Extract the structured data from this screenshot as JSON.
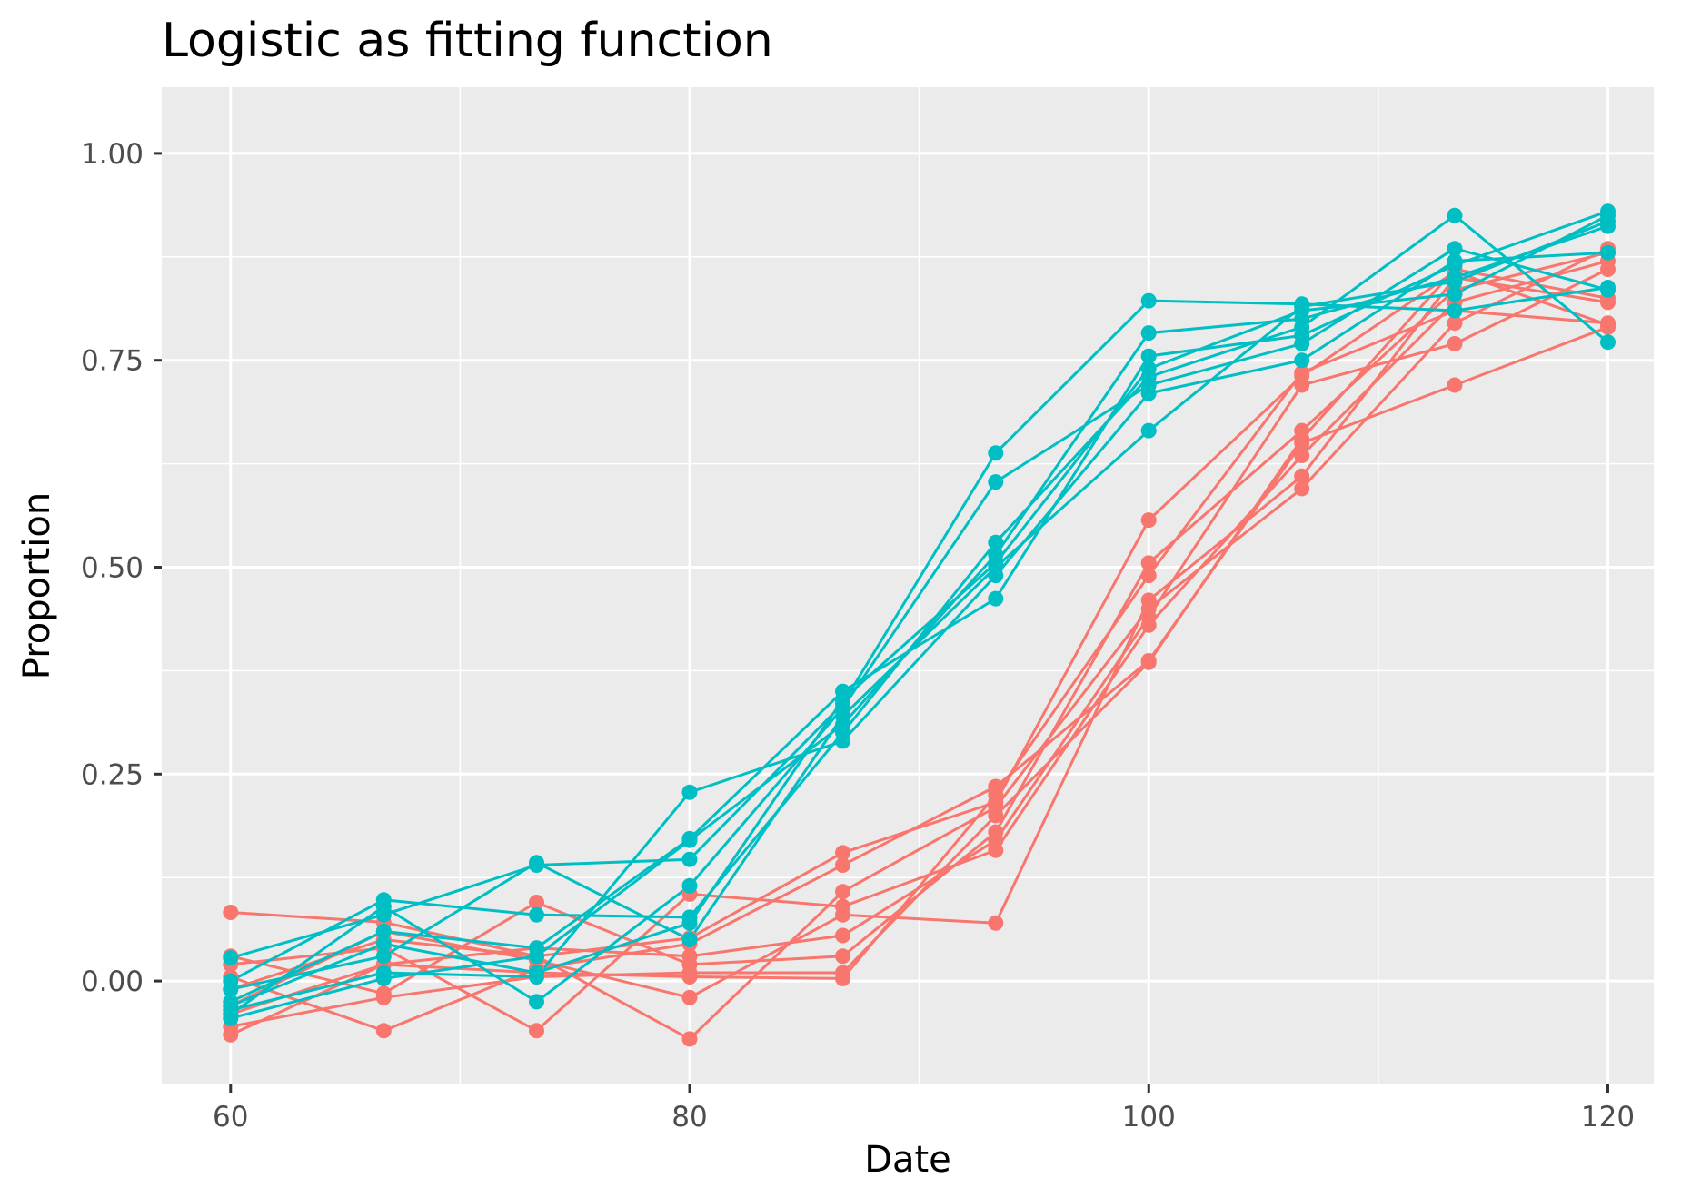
{
  "chart_data": {
    "type": "line",
    "title": "Logistic as fitting  function",
    "xlabel": "Date",
    "ylabel": "Proportion",
    "xlim": [
      57,
      122
    ],
    "ylim": [
      -0.125,
      1.08
    ],
    "xticks": [
      60,
      80,
      100,
      120
    ],
    "xtick_labels": [
      "60",
      "80",
      "100",
      "120"
    ],
    "yticks": [
      0,
      0.25,
      0.5,
      0.75,
      1
    ],
    "ytick_labels": [
      "0.00",
      "0.25",
      "0.50",
      "0.75",
      "1.00"
    ],
    "grid": true,
    "legend": "none",
    "colors": {
      "red": "#F8766D",
      "teal": "#00BFC4",
      "panel": "#EBEBEB",
      "grid": "#FFFFFF"
    },
    "x": [
      60,
      66.67,
      73.33,
      80,
      86.67,
      93.33,
      100,
      106.67,
      113.33,
      120
    ],
    "series": [
      {
        "color": "red",
        "values": [
          0.083,
          0.071,
          0.03,
          0.052,
          0.155,
          0.216,
          0.557,
          0.731,
          0.857,
          0.793
        ]
      },
      {
        "color": "red",
        "values": [
          0.03,
          -0.015,
          0.095,
          0.02,
          0.03,
          0.18,
          0.505,
          0.665,
          0.835,
          0.88
        ]
      },
      {
        "color": "red",
        "values": [
          0.02,
          0.04,
          -0.06,
          0.105,
          0.09,
          0.158,
          0.43,
          0.635,
          0.82,
          0.87
        ]
      },
      {
        "color": "red",
        "values": [
          0.005,
          -0.06,
          0.015,
          0.045,
          0.14,
          0.235,
          0.387,
          0.65,
          0.72,
          0.79
        ]
      },
      {
        "color": "red",
        "values": [
          -0.01,
          0.05,
          0.03,
          -0.07,
          0.108,
          0.21,
          0.45,
          0.595,
          0.795,
          0.885
        ]
      },
      {
        "color": "red",
        "values": [
          -0.03,
          0.06,
          0.025,
          -0.02,
          0.08,
          0.07,
          0.46,
          0.61,
          0.85,
          0.82
        ]
      },
      {
        "color": "red",
        "values": [
          -0.04,
          0.02,
          0.04,
          0.03,
          0.055,
          0.17,
          0.44,
          0.72,
          0.77,
          0.86
        ]
      },
      {
        "color": "red",
        "values": [
          -0.055,
          -0.02,
          0.005,
          0.01,
          0.01,
          0.2,
          0.385,
          0.655,
          0.86,
          0.825
        ]
      },
      {
        "color": "red",
        "values": [
          -0.065,
          0.02,
          0.01,
          0.005,
          0.003,
          0.225,
          0.49,
          0.735,
          0.81,
          0.795
        ]
      },
      {
        "color": "teal",
        "values": [
          0.028,
          0.08,
          0.14,
          0.147,
          0.335,
          0.638,
          0.822,
          0.818,
          0.81,
          0.838
        ]
      },
      {
        "color": "teal",
        "values": [
          0.0,
          0.098,
          0.08,
          0.077,
          0.3,
          0.53,
          0.73,
          0.79,
          0.925,
          0.772
        ]
      },
      {
        "color": "teal",
        "values": [
          -0.01,
          0.03,
          0.143,
          0.05,
          0.32,
          0.5,
          0.665,
          0.815,
          0.845,
          0.918
        ]
      },
      {
        "color": "teal",
        "values": [
          -0.025,
          0.06,
          0.04,
          0.172,
          0.35,
          0.462,
          0.755,
          0.78,
          0.865,
          0.93
        ]
      },
      {
        "color": "teal",
        "values": [
          -0.035,
          0.01,
          0.005,
          0.228,
          0.29,
          0.49,
          0.71,
          0.75,
          0.87,
          0.88
        ]
      },
      {
        "color": "teal",
        "values": [
          -0.04,
          0.09,
          -0.025,
          0.115,
          0.33,
          0.603,
          0.72,
          0.77,
          0.885,
          0.835
        ]
      },
      {
        "color": "teal",
        "values": [
          -0.045,
          0.003,
          0.03,
          0.17,
          0.31,
          0.515,
          0.783,
          0.8,
          0.85,
          0.912
        ]
      },
      {
        "color": "teal",
        "values": [
          -0.03,
          0.045,
          0.01,
          0.07,
          0.34,
          0.505,
          0.74,
          0.81,
          0.83,
          0.925
        ]
      }
    ]
  }
}
